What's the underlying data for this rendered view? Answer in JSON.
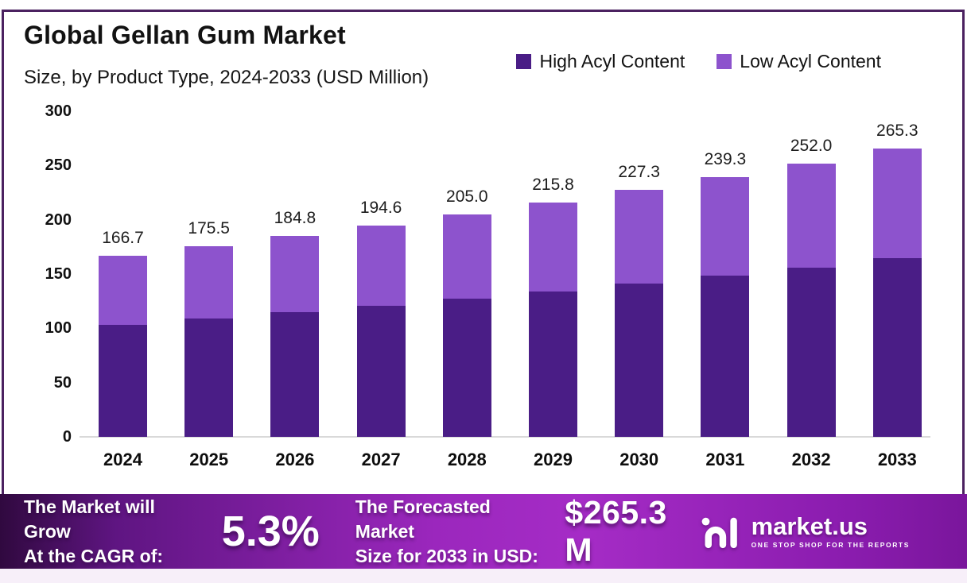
{
  "header": {
    "title": "Global Gellan Gum Market",
    "subtitle": "Size, by Product Type, 2024-2033 (USD Million)"
  },
  "legend": [
    {
      "label": "High Acyl Content",
      "color": "#4a1d86"
    },
    {
      "label": "Low Acyl Content",
      "color": "#8d53cd"
    }
  ],
  "chart_data": {
    "type": "bar",
    "stacked": true,
    "title": "Global Gellan Gum Market Size, by Product Type, 2024-2033 (USD Million)",
    "categories": [
      "2024",
      "2025",
      "2026",
      "2027",
      "2028",
      "2029",
      "2030",
      "2031",
      "2032",
      "2033"
    ],
    "series": [
      {
        "name": "High Acyl Content",
        "color": "#4a1d86",
        "values": [
          103.4,
          108.8,
          114.6,
          120.7,
          127.1,
          133.8,
          140.9,
          148.4,
          156.2,
          164.5
        ]
      },
      {
        "name": "Low Acyl Content",
        "color": "#8d53cd",
        "values": [
          63.3,
          66.7,
          70.2,
          73.9,
          77.9,
          82.0,
          86.4,
          90.9,
          95.8,
          100.8
        ]
      }
    ],
    "totals": [
      166.7,
      175.5,
      184.8,
      194.6,
      205.0,
      215.8,
      227.3,
      239.3,
      252.0,
      265.3
    ],
    "ylim": [
      0,
      300
    ],
    "yticks": [
      0,
      50,
      100,
      150,
      200,
      250,
      300
    ],
    "grid": false,
    "legend_position": "top-right",
    "xlabel": "",
    "ylabel": ""
  },
  "banner": {
    "cagr_label_line1": "The Market will Grow",
    "cagr_label_line2": "At the CAGR of:",
    "cagr_value": "5.3%",
    "forecast_label_line1": "The Forecasted Market",
    "forecast_label_line2": "Size for 2033 in USD:",
    "forecast_value": "$265.3 M",
    "logo_text": "market.us",
    "logo_tagline": "ONE STOP SHOP FOR THE REPORTS"
  },
  "colors": {
    "high_acyl": "#4a1d86",
    "low_acyl": "#8d53cd",
    "frame_border": "#4b2160",
    "banner_left": "#30093f",
    "banner_mid": "#a52cc6",
    "banner_right": "#7a169c",
    "axis_line": "#d9d9d9",
    "bottom_strip": "#f7eff9"
  }
}
